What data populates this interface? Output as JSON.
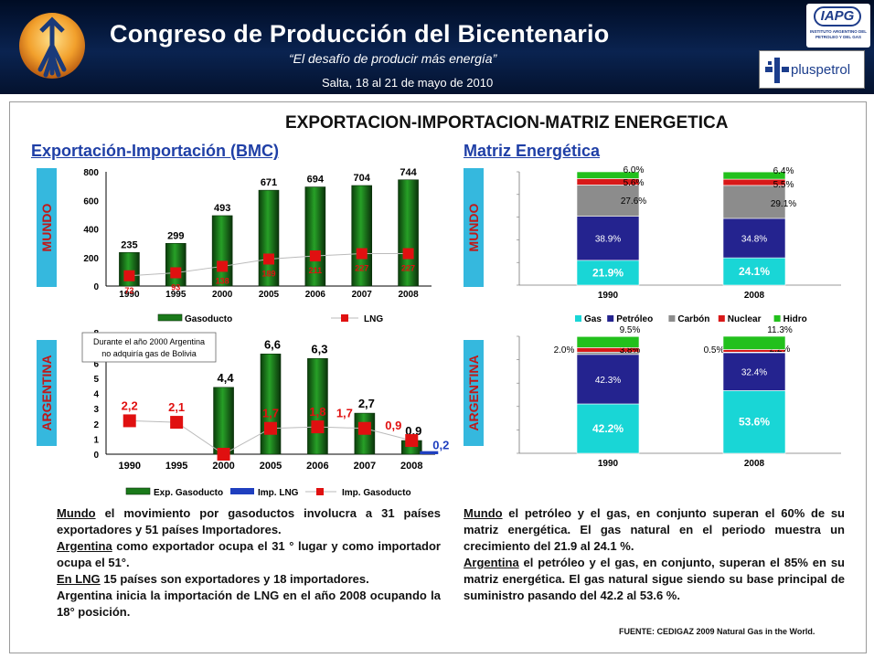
{
  "header": {
    "title": "Congreso de Producción del Bicentenario",
    "subtitle": "“El desafío de producir más energía”",
    "date": "Salta, 18 al 21 de mayo de 2010",
    "iapg_logo": "IAPG",
    "iapg_text": "INSTITUTO ARGENTINO DEL PETROLEO Y DEL GAS",
    "pluspetrol_logo": "pluspetrol"
  },
  "page": {
    "main_title": "EXPORTACION-IMPORTACION-MATRIZ ENERGETICA",
    "left_title": "Exportación-Importación (BMC)",
    "right_title": "Matriz Energética",
    "label_mundo": "MUNDO",
    "label_argentina": "ARGENTINA"
  },
  "chart_data": [
    {
      "id": "mundo_exp_imp",
      "type": "bar",
      "categories": [
        "1990",
        "1995",
        "2000",
        "2005",
        "2006",
        "2007",
        "2008"
      ],
      "series": [
        {
          "name": "Gasoducto",
          "kind": "bar",
          "values": [
            235,
            299,
            493,
            671,
            694,
            704,
            744
          ],
          "color": "#1a7a1a"
        },
        {
          "name": "LNG",
          "kind": "line-marker",
          "values": [
            72,
            93,
            138,
            189,
            211,
            227,
            227
          ],
          "color": "#e01010"
        }
      ],
      "ylim": [
        0,
        800
      ],
      "yticks": [
        0,
        200,
        400,
        600,
        800
      ]
    },
    {
      "id": "argentina_exp_imp",
      "type": "bar",
      "categories": [
        "1990",
        "1995",
        "2000",
        "2005",
        "2006",
        "2007",
        "2008"
      ],
      "series": [
        {
          "name": "Exp. Gasoducto",
          "kind": "bar",
          "values": [
            null,
            null,
            4.4,
            6.6,
            6.3,
            2.7,
            0.9
          ],
          "labels": [
            "",
            "",
            "4,4",
            "6,6",
            "6,3",
            "2,7",
            "0,9"
          ],
          "color": "#1a7a1a"
        },
        {
          "name": "Imp. LNG",
          "kind": "bar",
          "values": [
            null,
            null,
            null,
            null,
            null,
            null,
            0.2
          ],
          "labels": [
            "",
            "",
            "",
            "",
            "",
            "",
            "0,2"
          ],
          "color": "#1f3fbf"
        },
        {
          "name": "Imp. Gasoducto",
          "kind": "line-marker",
          "values": [
            2.2,
            2.1,
            0,
            1.7,
            1.8,
            1.7,
            0.9
          ],
          "labels": [
            "2,2",
            "2,1",
            "",
            "1,7",
            "1,8",
            "1,7",
            "0,9"
          ],
          "color": "#e01010"
        }
      ],
      "ylim": [
        0,
        8
      ],
      "yticks": [
        0,
        1,
        2,
        3,
        4,
        5,
        6,
        7,
        8
      ],
      "annotation": "Durante el año 2000 Argentina no adquiría gas de Bolivia"
    },
    {
      "id": "mundo_matriz",
      "type": "bar",
      "stacked": true,
      "categories": [
        "1990",
        "2008"
      ],
      "series": [
        {
          "name": "Gas",
          "values": [
            21.9,
            24.1
          ],
          "color": "#19d6d6"
        },
        {
          "name": "Petróleo",
          "values": [
            38.9,
            34.8
          ],
          "color": "#24238f"
        },
        {
          "name": "Carbón",
          "values": [
            27.6,
            29.1
          ],
          "color": "#8c8c8c"
        },
        {
          "name": "Nuclear",
          "values": [
            5.6,
            5.5
          ],
          "color": "#d81818"
        },
        {
          "name": "Hidro",
          "values": [
            6.0,
            6.4
          ],
          "color": "#22c01c"
        }
      ],
      "labels": {
        "1990": [
          "21.9%",
          "38.9%",
          "27.6%",
          "5.6%",
          "6.0%"
        ],
        "2008": [
          "24.1%",
          "34.8%",
          "29.1%",
          "5.5%",
          "6.4%"
        ]
      }
    },
    {
      "id": "argentina_matriz",
      "type": "bar",
      "stacked": true,
      "categories": [
        "1990",
        "2008"
      ],
      "series": [
        {
          "name": "Gas",
          "values": [
            42.2,
            53.6
          ],
          "color": "#19d6d6"
        },
        {
          "name": "Petróleo",
          "values": [
            42.3,
            32.4
          ],
          "color": "#24238f"
        },
        {
          "name": "Carbón",
          "values": [
            2.0,
            0.5
          ],
          "color": "#8c8c8c"
        },
        {
          "name": "Nuclear",
          "values": [
            3.8,
            2.2
          ],
          "color": "#d81818"
        },
        {
          "name": "Hidro",
          "values": [
            9.5,
            11.3
          ],
          "color": "#22c01c"
        }
      ],
      "labels": {
        "1990": [
          "42.2%",
          "42.3%",
          "2.0%",
          "3.8%",
          "9.5%"
        ],
        "2008": [
          "53.6%",
          "32.4%",
          "0.5%",
          "2.2%",
          "11.3%"
        ]
      }
    }
  ],
  "text": {
    "left": [
      {
        "u": "Mundo",
        "t": " el movimiento por gasoductos involucra a 31 países exportadores y 51 países Importadores."
      },
      {
        "u": "Argentina",
        "t": " como exportador ocupa el 31 ° lugar y como importador ocupa el 51°."
      },
      {
        "u": "En LNG",
        "t": " 15 países son exportadores y 18 importadores."
      },
      {
        "u": "",
        "t": "Argentina inicia la importación de LNG en el año 2008 ocupando la 18° posición."
      }
    ],
    "right": [
      {
        "u": "Mundo",
        "t": " el petróleo y el gas, en conjunto superan el 60% de su matriz energética. El gas natural en el periodo muestra un crecimiento del 21.9 al 24.1 %."
      },
      {
        "u": "Argentina",
        "t": " el petróleo y el gas, en conjunto, superan el 85% en su matriz energética. El gas natural sigue siendo su base principal de suministro pasando del 42.2 al 53.6 %."
      }
    ],
    "source": "FUENTE: CEDIGAZ 2009 Natural Gas in the World."
  }
}
